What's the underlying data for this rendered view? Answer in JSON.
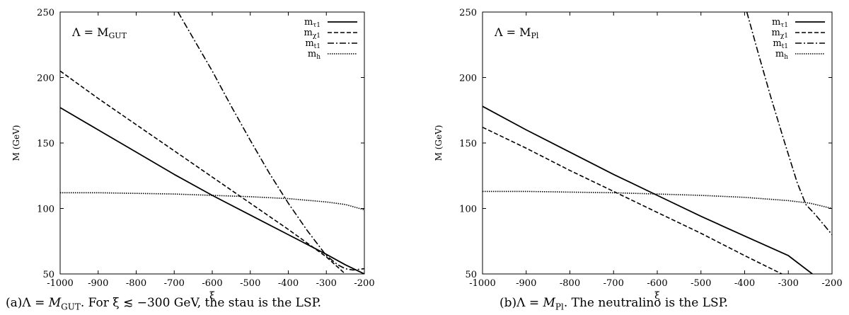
{
  "chart_data": [
    {
      "type": "line",
      "panel_label": "Λ = M",
      "panel_label_sub": "GUT",
      "xlabel": "ξ",
      "ylabel": "M (GeV)",
      "xlim": [
        -1000,
        -200
      ],
      "ylim": [
        50,
        250
      ],
      "xticks": [
        "-1000",
        "-900",
        "-800",
        "-700",
        "-600",
        "-500",
        "-400",
        "-300",
        "-200"
      ],
      "yticks": [
        "50",
        "100",
        "150",
        "200",
        "250"
      ],
      "legend_position": "top-right",
      "series": [
        {
          "name": "m",
          "sub": "τ1",
          "style": "solid",
          "x": [
            -1000,
            -900,
            -800,
            -700,
            -600,
            -500,
            -400,
            -300,
            -250,
            -200
          ],
          "y": [
            177,
            160,
            143,
            126,
            110,
            95,
            80,
            65,
            57,
            50
          ]
        },
        {
          "name": "m",
          "sub": "χ1",
          "style": "dashed",
          "x": [
            -1000,
            -900,
            -800,
            -700,
            -600,
            -500,
            -400,
            -300,
            -250
          ],
          "y": [
            205,
            184,
            164,
            144,
            124,
            104,
            84,
            63,
            50
          ]
        },
        {
          "name": "m",
          "sub": "t1",
          "style": "dashdot",
          "x": [
            -690,
            -650,
            -600,
            -550,
            -500,
            -450,
            -400,
            -350,
            -300,
            -270,
            -250,
            -230,
            -200
          ],
          "y": [
            250,
            230,
            205,
            178,
            152,
            127,
            104,
            83,
            64,
            57,
            54,
            53,
            54
          ]
        },
        {
          "name": "m",
          "sub": "h",
          "style": "dotted",
          "x": [
            -1000,
            -900,
            -800,
            -700,
            -600,
            -500,
            -400,
            -300,
            -250,
            -200
          ],
          "y": [
            112,
            112,
            111.5,
            111,
            110,
            109,
            107.5,
            105,
            103,
            99
          ]
        }
      ]
    },
    {
      "type": "line",
      "panel_label": "Λ = M",
      "panel_label_sub": "Pl",
      "xlabel": "ξ",
      "ylabel": "M (GeV)",
      "xlim": [
        -1000,
        -200
      ],
      "ylim": [
        50,
        250
      ],
      "xticks": [
        "-1000",
        "-900",
        "-800",
        "-700",
        "-600",
        "-500",
        "-400",
        "-300",
        "-200"
      ],
      "yticks": [
        "50",
        "100",
        "150",
        "200",
        "250"
      ],
      "legend_position": "top-right",
      "series": [
        {
          "name": "m",
          "sub": "τ1",
          "style": "solid",
          "x": [
            -1000,
            -900,
            -800,
            -700,
            -600,
            -500,
            -400,
            -300,
            -245
          ],
          "y": [
            178,
            160,
            143,
            126,
            110,
            94,
            79,
            64,
            50
          ]
        },
        {
          "name": "m",
          "sub": "χ1",
          "style": "dashed",
          "x": [
            -1000,
            -900,
            -800,
            -700,
            -600,
            -500,
            -400,
            -315
          ],
          "y": [
            162,
            146,
            129,
            113,
            97,
            81,
            64,
            50
          ]
        },
        {
          "name": "m",
          "sub": "t1",
          "style": "dashdot",
          "x": [
            -395,
            -370,
            -340,
            -310,
            -280,
            -260,
            -240,
            -220,
            -200
          ],
          "y": [
            250,
            220,
            185,
            152,
            120,
            103,
            96,
            88,
            80
          ]
        },
        {
          "name": "m",
          "sub": "h",
          "style": "dotted",
          "x": [
            -1000,
            -900,
            -800,
            -700,
            -600,
            -500,
            -400,
            -300,
            -250,
            -200
          ],
          "y": [
            113,
            113,
            112.5,
            112,
            111,
            110,
            108.5,
            106,
            104,
            100
          ]
        }
      ]
    }
  ],
  "captions": {
    "a": {
      "prefix": "(a)Λ = ",
      "var": "M",
      "sub": "GUT",
      "rest": ". For ξ ≲ −300 GeV, the stau is the LSP."
    },
    "b": {
      "prefix": "(b)Λ = ",
      "var": "M",
      "sub": "Pl",
      "rest": ". The neutralino is the LSP."
    }
  }
}
